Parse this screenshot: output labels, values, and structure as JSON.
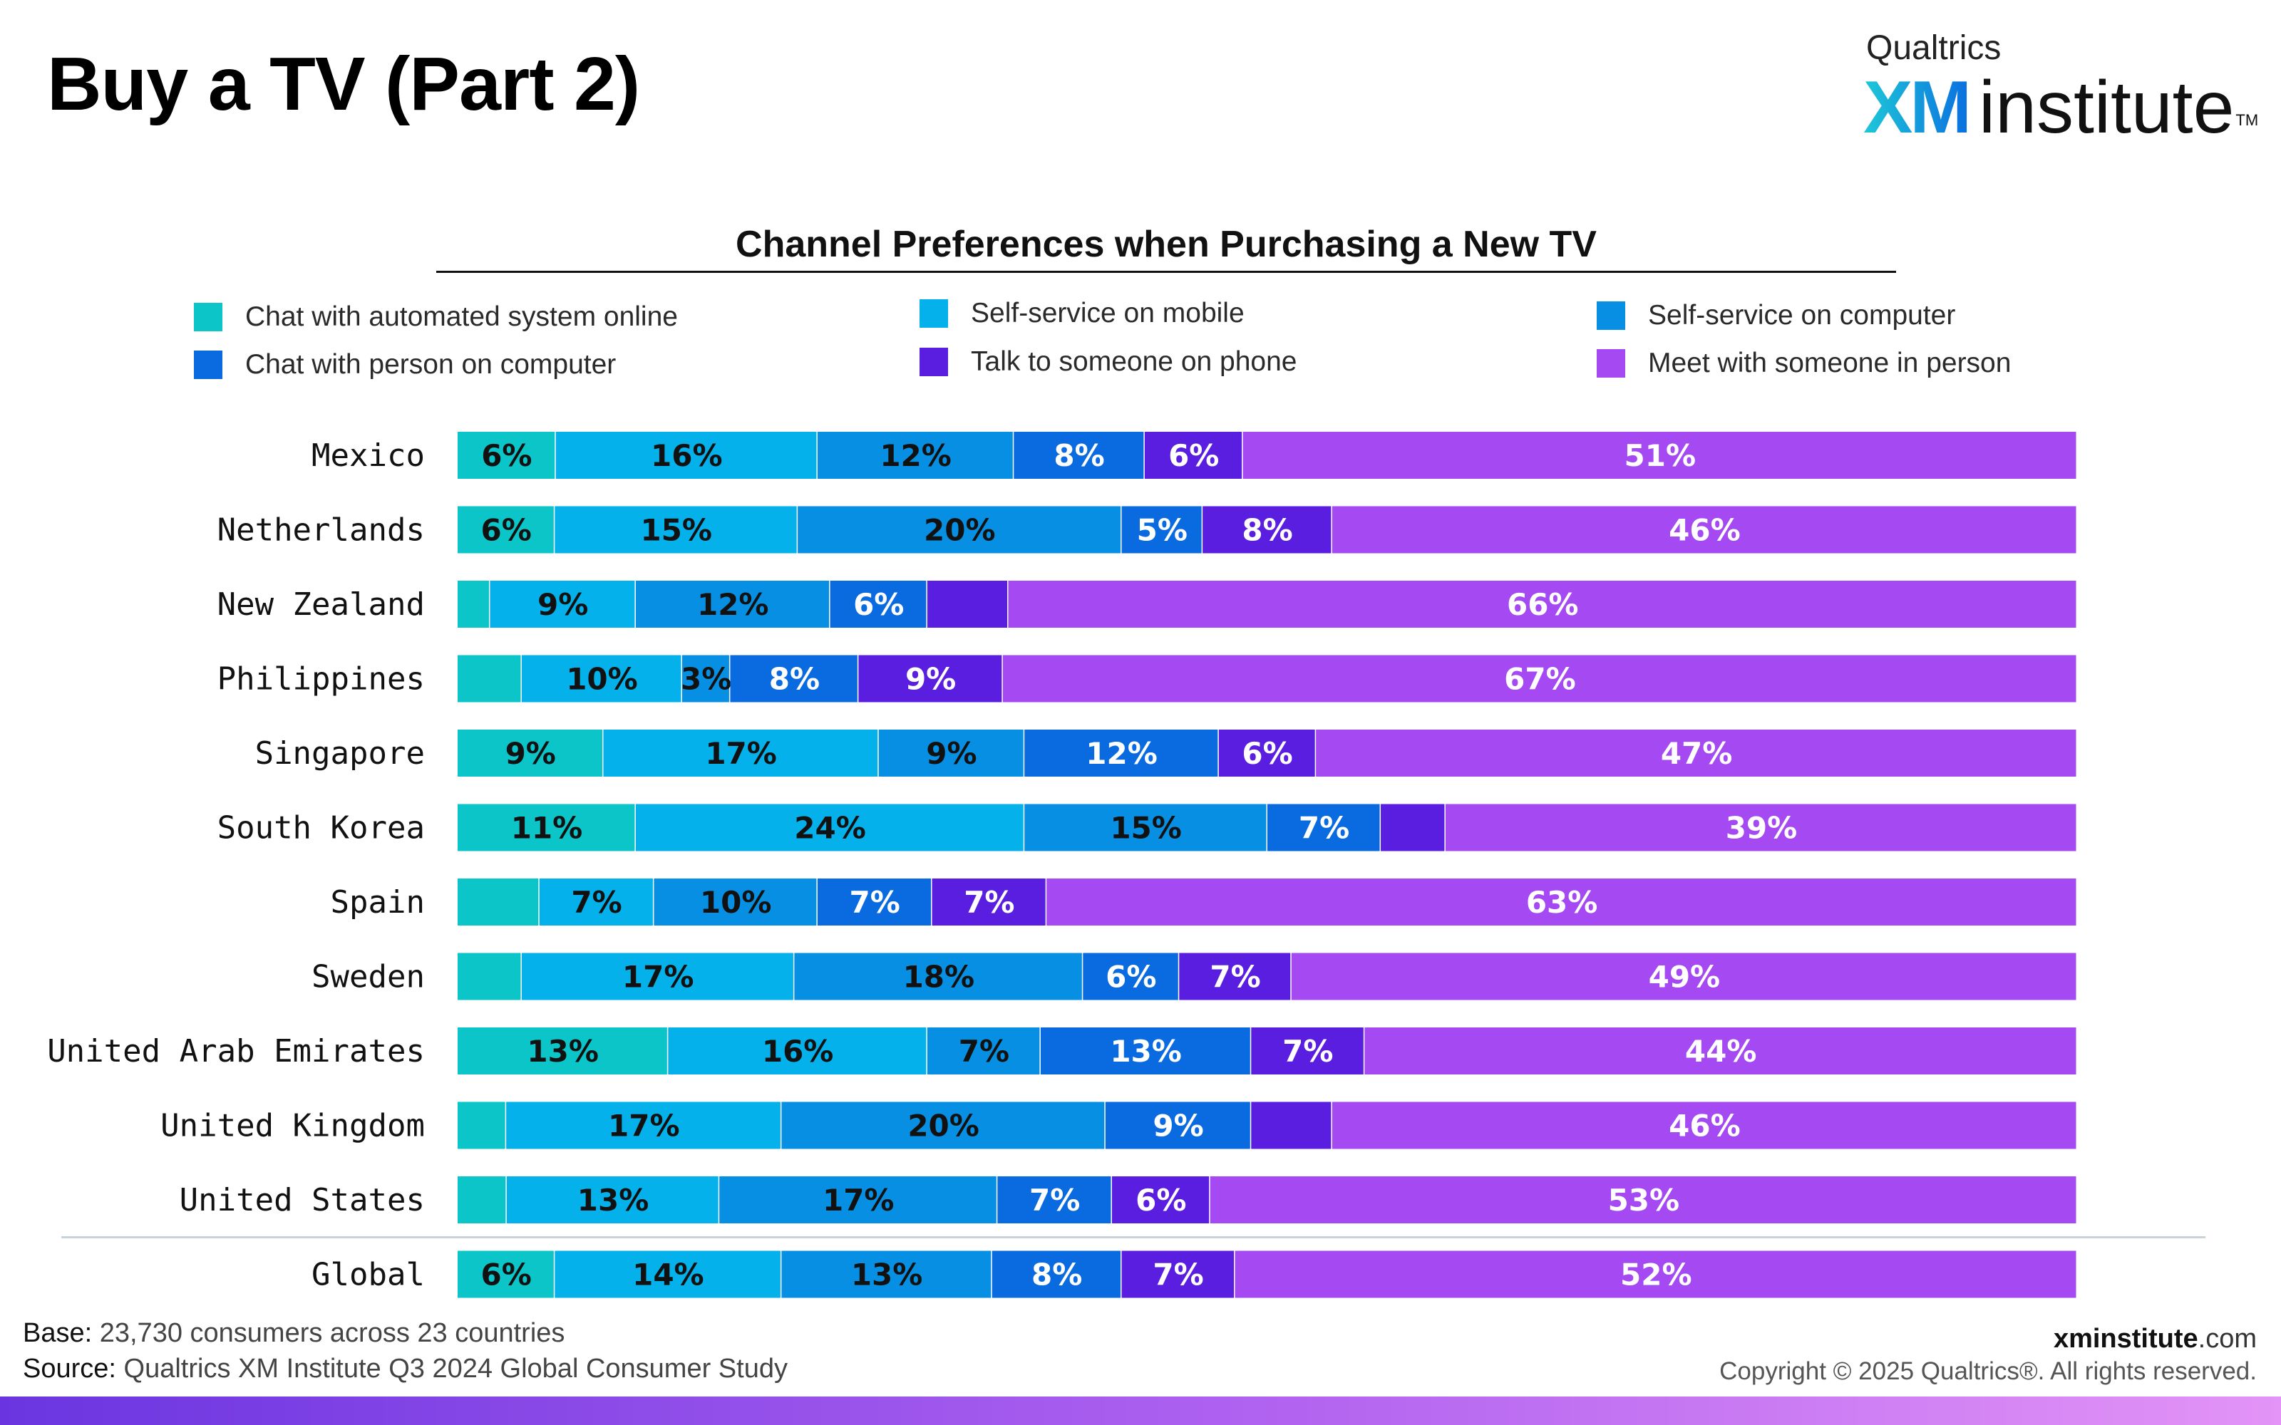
{
  "page": {
    "title": "Buy a TV (Part 2)",
    "logo_top": "Qualtrics",
    "logo_xm": "XM",
    "logo_institute": "institute",
    "logo_tm": "TM",
    "base_label": "Base:",
    "base_text": "23,730 consumers across 23 countries",
    "source_label": "Source:",
    "source_text": "Qualtrics XM Institute Q3 2024 Global Consumer Study",
    "site_bold": "xminstitute",
    "site_light": ".com",
    "copyright": "Copyright © 2025 Qualtrics®. All rights reserved."
  },
  "chart_data": {
    "type": "bar",
    "orientation": "horizontal",
    "stacked": true,
    "normalized_to_100": true,
    "title": "Channel Preferences when Purchasing a New TV",
    "legend_position": "top",
    "grid": false,
    "categories": [
      "Mexico",
      "Netherlands",
      "New Zealand",
      "Philippines",
      "Singapore",
      "South Korea",
      "Spain",
      "Sweden",
      "United Arab Emirates",
      "United Kingdom",
      "United States",
      "Global"
    ],
    "series": [
      {
        "name": "Chat with automated system online",
        "color": "#0bc5c9",
        "label_color": "#111111",
        "values": [
          6,
          6,
          2,
          4,
          9,
          11,
          5,
          4,
          13,
          3,
          3,
          6
        ],
        "labels": [
          "6%",
          "6%",
          "",
          "",
          "9%",
          "11%",
          "",
          "",
          "13%",
          "",
          "",
          "6%"
        ]
      },
      {
        "name": "Self-service on mobile",
        "color": "#04b1ea",
        "label_color": "#111111",
        "values": [
          16,
          15,
          9,
          10,
          17,
          24,
          7,
          17,
          16,
          17,
          13,
          14
        ],
        "labels": [
          "16%",
          "15%",
          "9%",
          "10%",
          "17%",
          "24%",
          "7%",
          "17%",
          "16%",
          "17%",
          "13%",
          "14%"
        ]
      },
      {
        "name": "Self-service on computer",
        "color": "#0790e3",
        "label_color": "#111111",
        "values": [
          12,
          20,
          12,
          3,
          9,
          15,
          10,
          18,
          7,
          20,
          17,
          13
        ],
        "labels": [
          "12%",
          "20%",
          "12%",
          "3%",
          "9%",
          "15%",
          "10%",
          "18%",
          "7%",
          "20%",
          "17%",
          "13%"
        ]
      },
      {
        "name": "Chat with person on computer",
        "color": "#0a6adf",
        "label_color": "#ffffff",
        "values": [
          8,
          5,
          6,
          8,
          12,
          7,
          7,
          6,
          13,
          9,
          7,
          8
        ],
        "labels": [
          "8%",
          "5%",
          "6%",
          "8%",
          "12%",
          "7%",
          "7%",
          "6%",
          "13%",
          "9%",
          "7%",
          "8%"
        ]
      },
      {
        "name": "Talk to someone on phone",
        "color": "#5a1ee0",
        "label_color": "#ffffff",
        "values": [
          6,
          8,
          5,
          9,
          6,
          4,
          7,
          7,
          7,
          5,
          6,
          7
        ],
        "labels": [
          "6%",
          "8%",
          "",
          "9%",
          "6%",
          "",
          "7%",
          "7%",
          "7%",
          "",
          "6%",
          "7%"
        ]
      },
      {
        "name": "Meet with someone in person",
        "color": "#a54af2",
        "label_color": "#ffffff",
        "values": [
          51,
          46,
          66,
          67,
          47,
          39,
          63,
          49,
          44,
          46,
          53,
          52
        ],
        "labels": [
          "51%",
          "46%",
          "66%",
          "67%",
          "47%",
          "39%",
          "63%",
          "49%",
          "44%",
          "46%",
          "53%",
          "52%"
        ]
      }
    ]
  }
}
